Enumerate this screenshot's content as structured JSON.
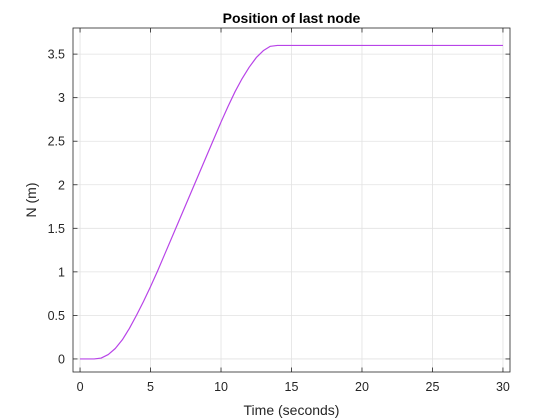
{
  "chart_data": {
    "type": "line",
    "title": "Position of last node",
    "xlabel": "Time (seconds)",
    "ylabel": "N (m)",
    "xlim": [
      -0.5,
      30.5
    ],
    "ylim": [
      -0.15,
      3.8
    ],
    "xticks": [
      0,
      5,
      10,
      15,
      20,
      25,
      30
    ],
    "yticks": [
      0,
      0.5,
      1,
      1.5,
      2,
      2.5,
      3,
      3.5
    ],
    "xtick_labels": [
      "0",
      "5",
      "10",
      "15",
      "20",
      "25",
      "30"
    ],
    "ytick_labels": [
      "0",
      "0.5",
      "1",
      "1.5",
      "2",
      "2.5",
      "3",
      "3.5"
    ],
    "grid": true,
    "line_color": "#b844e8",
    "series": [
      {
        "x": [
          0,
          1,
          1.5,
          2,
          2.5,
          3,
          3.5,
          4,
          4.5,
          5,
          5.5,
          6,
          7,
          8,
          9,
          10,
          10.5,
          11,
          11.5,
          12,
          12.5,
          13,
          13.5,
          14,
          15,
          20,
          25,
          30
        ],
        "y": [
          0,
          0,
          0.01,
          0.05,
          0.12,
          0.22,
          0.35,
          0.5,
          0.66,
          0.83,
          1.01,
          1.2,
          1.58,
          1.96,
          2.34,
          2.72,
          2.9,
          3.07,
          3.22,
          3.35,
          3.46,
          3.54,
          3.59,
          3.6,
          3.6,
          3.6,
          3.6,
          3.6
        ]
      }
    ]
  }
}
